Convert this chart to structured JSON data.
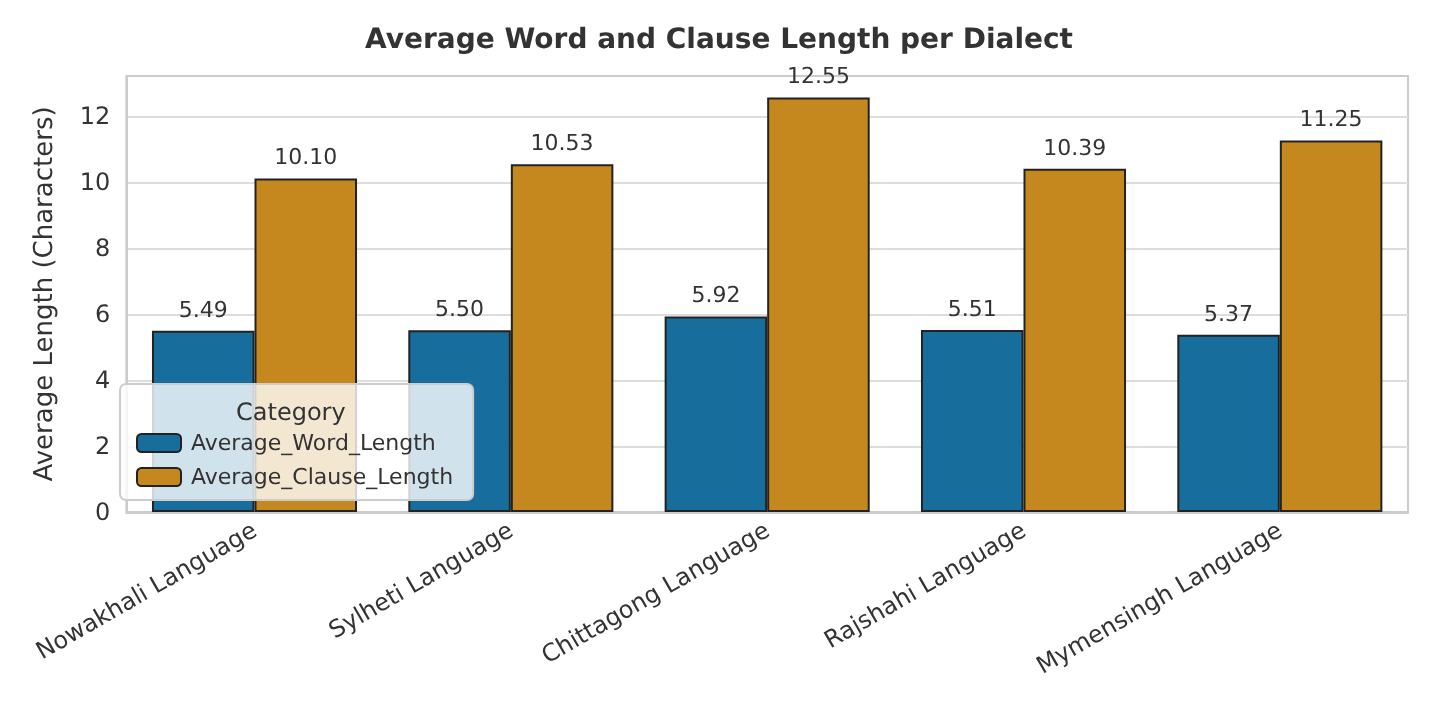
{
  "chart_data": {
    "type": "bar",
    "title": "Average Word and Clause Length per Dialect",
    "ylabel": "Average Length (Characters)",
    "legend_title": "Category",
    "categories": [
      "Nowakhali Language",
      "Sylheti Language",
      "Chittagong Language",
      "Rajshahi Language",
      "Mymensingh Language"
    ],
    "series": [
      {
        "name": "Average_Word_Length",
        "color": "#176d9c",
        "values": [
          5.49,
          5.5,
          5.92,
          5.51,
          5.37
        ],
        "value_labels": [
          "5.49",
          "5.50",
          "5.92",
          "5.51",
          "5.37"
        ]
      },
      {
        "name": "Average_Clause_Length",
        "color": "#c4881f",
        "values": [
          10.1,
          10.53,
          12.55,
          10.39,
          11.25
        ],
        "value_labels": [
          "10.10",
          "10.53",
          "12.55",
          "10.39",
          "11.25"
        ]
      }
    ],
    "ylim": [
      0,
      13.2
    ],
    "yticks": [
      0,
      2,
      4,
      6,
      8,
      10,
      12
    ],
    "grid": "y",
    "legend": "bottom left"
  }
}
